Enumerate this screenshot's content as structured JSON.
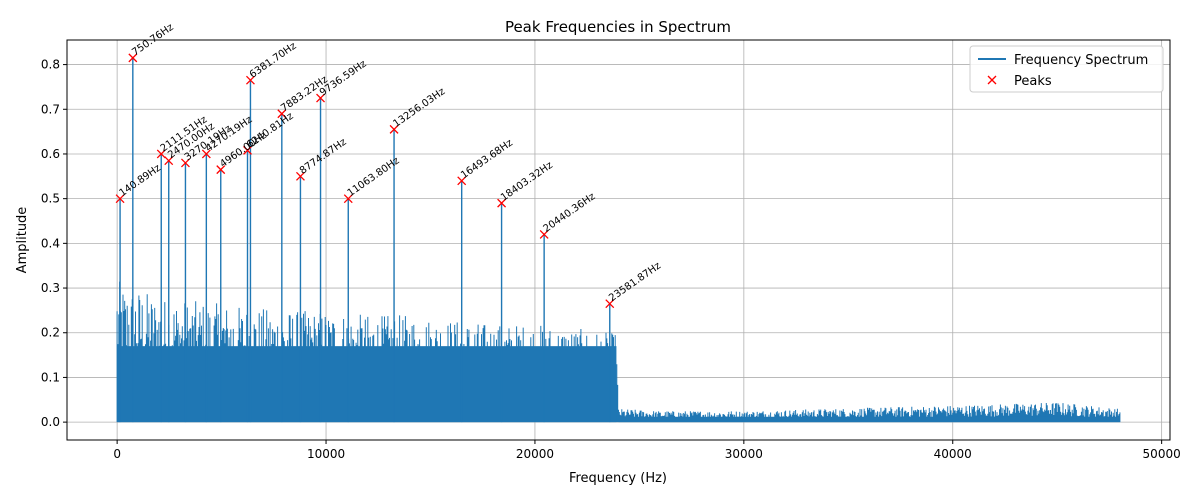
{
  "chart_data": {
    "type": "line",
    "title": "Peak Frequencies in Spectrum",
    "xlabel": "Frequency (Hz)",
    "ylabel": "Amplitude",
    "xlim": [
      -2400,
      50400
    ],
    "ylim": [
      -0.04,
      0.855
    ],
    "xticks": [
      0,
      10000,
      20000,
      30000,
      40000,
      50000
    ],
    "yticks": [
      0.0,
      0.1,
      0.2,
      0.3,
      0.4,
      0.5,
      0.6,
      0.7,
      0.8
    ],
    "xtick_labels": [
      "0",
      "10000",
      "20000",
      "30000",
      "40000",
      "50000"
    ],
    "ytick_labels": [
      "0.0",
      "0.1",
      "0.2",
      "0.3",
      "0.4",
      "0.5",
      "0.6",
      "0.7",
      "0.8"
    ],
    "grid": true,
    "legend_position": "top-right",
    "colors": {
      "spectrum": "#1f77b4",
      "peaks": "#ff0000"
    },
    "series": [
      {
        "name": "Frequency Spectrum",
        "kind": "line",
        "description_points": {
          "x": [
            0,
            500,
            1000,
            2000,
            4000,
            6000,
            8000,
            10000,
            12000,
            14000,
            16000,
            18000,
            20000,
            22000,
            23600,
            23900,
            24000,
            26000,
            30000,
            34000,
            38000,
            42000,
            45000,
            48000
          ],
          "y": [
            0.32,
            0.3,
            0.3,
            0.28,
            0.27,
            0.26,
            0.25,
            0.25,
            0.24,
            0.24,
            0.23,
            0.22,
            0.22,
            0.21,
            0.2,
            0.2,
            0.03,
            0.025,
            0.025,
            0.03,
            0.035,
            0.04,
            0.045,
            0.03
          ]
        }
      },
      {
        "name": "Peaks",
        "kind": "markers"
      }
    ],
    "peaks": [
      {
        "x": 140.89,
        "y": 0.5,
        "label": "140.89Hz"
      },
      {
        "x": 750.76,
        "y": 0.815,
        "label": "750.76Hz"
      },
      {
        "x": 2111.51,
        "y": 0.6,
        "label": "2111.51Hz"
      },
      {
        "x": 2470.0,
        "y": 0.585,
        "label": "2470.00Hz"
      },
      {
        "x": 3270.19,
        "y": 0.58,
        "label": "3270.19Hz"
      },
      {
        "x": 4270.19,
        "y": 0.6,
        "label": "4270.19Hz"
      },
      {
        "x": 4960.0,
        "y": 0.565,
        "label": "4960.00Hz"
      },
      {
        "x": 6240.81,
        "y": 0.608,
        "label": "6240.81Hz"
      },
      {
        "x": 6381.7,
        "y": 0.765,
        "label": "6381.70Hz"
      },
      {
        "x": 7883.22,
        "y": 0.69,
        "label": "7883.22Hz"
      },
      {
        "x": 8774.87,
        "y": 0.55,
        "label": "8774.87Hz"
      },
      {
        "x": 9736.59,
        "y": 0.725,
        "label": "9736.59Hz"
      },
      {
        "x": 11063.8,
        "y": 0.5,
        "label": "11063.80Hz"
      },
      {
        "x": 13256.03,
        "y": 0.655,
        "label": "13256.03Hz"
      },
      {
        "x": 16493.68,
        "y": 0.54,
        "label": "16493.68Hz"
      },
      {
        "x": 18403.32,
        "y": 0.49,
        "label": "18403.32Hz"
      },
      {
        "x": 20440.36,
        "y": 0.42,
        "label": "20440.36Hz"
      },
      {
        "x": 23581.87,
        "y": 0.265,
        "label": "23581.87Hz"
      }
    ]
  },
  "legend": {
    "spectrum_label": "Frequency Spectrum",
    "peaks_label": "Peaks"
  }
}
